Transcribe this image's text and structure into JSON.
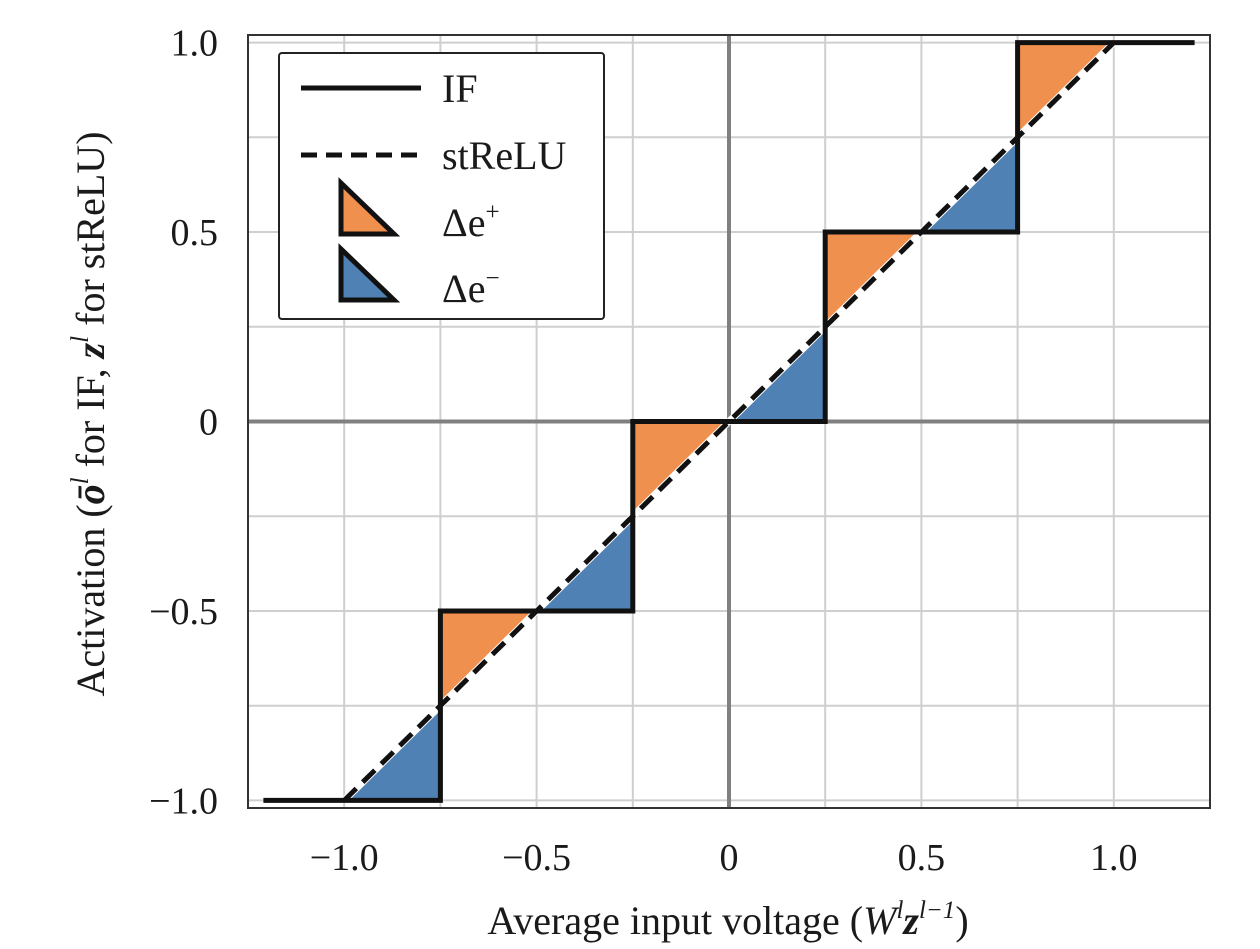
{
  "chart_data": {
    "type": "line",
    "xlabel": {
      "prefix": "Average input voltage (",
      "W": "W",
      "l": "l",
      "z": "z",
      "sup": "l−1",
      "suffix": ")"
    },
    "ylabel": {
      "prefix": "Activation (",
      "o": "ō",
      "l": "l",
      "mid": " for IF, ",
      "z": "z",
      "l2": "l",
      "suffix": " for stReLU)"
    },
    "xlim": [
      -1.25,
      1.25
    ],
    "ylim": [
      -1.02,
      1.02
    ],
    "grid": true,
    "grid_step": 0.25,
    "xticks": [
      {
        "value": -1.0,
        "label": "−1.0"
      },
      {
        "value": -0.5,
        "label": "−0.5"
      },
      {
        "value": 0,
        "label": "0"
      },
      {
        "value": 0.5,
        "label": "0.5"
      },
      {
        "value": 1.0,
        "label": "1.0"
      }
    ],
    "yticks": [
      {
        "value": -1.0,
        "label": "−1.0"
      },
      {
        "value": -0.5,
        "label": "−0.5"
      },
      {
        "value": 0,
        "label": "0"
      },
      {
        "value": 0.5,
        "label": "0.5"
      },
      {
        "value": 1.0,
        "label": "1.0"
      }
    ],
    "series": [
      {
        "name": "IF",
        "style": "solid",
        "color": "#111111",
        "points": [
          [
            -1.21,
            -1.0
          ],
          [
            -0.75,
            -1.0
          ],
          [
            -0.75,
            -0.5
          ],
          [
            -0.25,
            -0.5
          ],
          [
            -0.25,
            0.0
          ],
          [
            0.25,
            0.0
          ],
          [
            0.25,
            0.5
          ],
          [
            0.75,
            0.5
          ],
          [
            0.75,
            1.0
          ],
          [
            1.21,
            1.0
          ]
        ]
      },
      {
        "name": "stReLU",
        "style": "dashed",
        "color": "#111111",
        "points": [
          [
            -1.0,
            -1.0
          ],
          [
            1.0,
            1.0
          ]
        ]
      }
    ],
    "regions": [
      {
        "type": "pos",
        "points": [
          [
            -0.75,
            -0.75
          ],
          [
            -0.75,
            -0.5
          ],
          [
            -0.5,
            -0.5
          ]
        ]
      },
      {
        "type": "pos",
        "points": [
          [
            -0.25,
            -0.25
          ],
          [
            -0.25,
            0.0
          ],
          [
            0.0,
            0.0
          ]
        ]
      },
      {
        "type": "pos",
        "points": [
          [
            0.25,
            0.25
          ],
          [
            0.25,
            0.5
          ],
          [
            0.5,
            0.5
          ]
        ]
      },
      {
        "type": "pos",
        "points": [
          [
            0.75,
            0.75
          ],
          [
            0.75,
            1.0
          ],
          [
            1.0,
            1.0
          ]
        ]
      },
      {
        "type": "neg",
        "points": [
          [
            -1.0,
            -1.0
          ],
          [
            -0.75,
            -1.0
          ],
          [
            -0.75,
            -0.75
          ]
        ]
      },
      {
        "type": "neg",
        "points": [
          [
            -0.5,
            -0.5
          ],
          [
            -0.25,
            -0.5
          ],
          [
            -0.25,
            -0.25
          ]
        ]
      },
      {
        "type": "neg",
        "points": [
          [
            0.0,
            0.0
          ],
          [
            0.25,
            0.0
          ],
          [
            0.25,
            0.25
          ]
        ]
      },
      {
        "type": "neg",
        "points": [
          [
            0.5,
            0.5
          ],
          [
            0.75,
            0.5
          ],
          [
            0.75,
            0.75
          ]
        ]
      }
    ],
    "legend": {
      "position": "top-left",
      "items": [
        {
          "key": "if",
          "label": "IF",
          "kind": "solid-line"
        },
        {
          "key": "strelu",
          "label": "stReLU",
          "kind": "dashed-line"
        },
        {
          "key": "pos",
          "base": "Δe",
          "sup": "+",
          "kind": "pos-triangle"
        },
        {
          "key": "neg",
          "base": "Δe",
          "sup": "−",
          "kind": "neg-triangle"
        }
      ]
    },
    "colors": {
      "pos_fill": "#F0904F",
      "neg_fill": "#4F81B5",
      "line": "#111111",
      "grid": "#cfcfcf",
      "zero_axis": "#808080",
      "frame": "#333333"
    }
  }
}
